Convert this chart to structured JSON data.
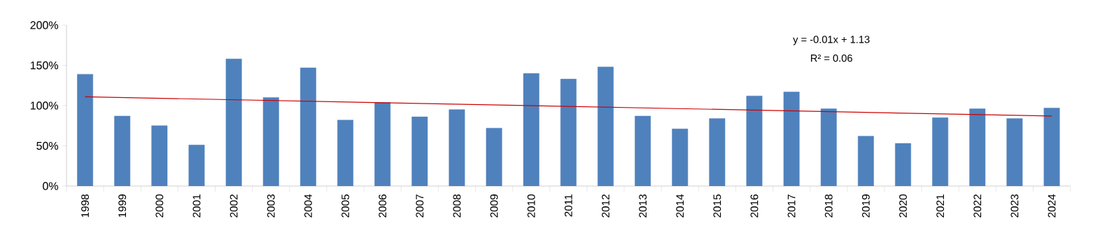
{
  "chart_data": {
    "type": "bar",
    "categories": [
      "1998",
      "1999",
      "2000",
      "2001",
      "2002",
      "2003",
      "2004",
      "2005",
      "2006",
      "2007",
      "2008",
      "2009",
      "2010",
      "2011",
      "2012",
      "2013",
      "2014",
      "2015",
      "2016",
      "2017",
      "2018",
      "2019",
      "2020",
      "2021",
      "2022",
      "2023",
      "2024"
    ],
    "series": [
      {
        "color": "#4f81bd",
        "values": [
          139,
          87,
          75,
          51,
          158,
          110,
          147,
          82,
          104,
          86,
          95,
          72,
          140,
          133,
          148,
          87,
          71,
          84,
          112,
          117,
          96,
          62,
          53,
          85,
          96,
          84,
          97
        ]
      },
      {
        "type": "line",
        "color": "#cc0000",
        "values": [
          111,
          null,
          null,
          null,
          null,
          null,
          null,
          null,
          null,
          null,
          null,
          null,
          null,
          null,
          null,
          null,
          null,
          null,
          null,
          null,
          null,
          null,
          null,
          null,
          null,
          null,
          87
        ]
      }
    ],
    "ylim": [
      0,
      200
    ],
    "yticks": [
      {
        "value": 0,
        "label": "0%"
      },
      {
        "value": 50,
        "label": "50%"
      },
      {
        "value": 100,
        "label": "100%"
      },
      {
        "value": 150,
        "label": "150%"
      },
      {
        "value": 200,
        "label": "200%"
      }
    ],
    "annotations": [
      "y = -0.01x + 1.13",
      "R² = 0.06"
    ],
    "marker": "none",
    "line_style": "solid"
  }
}
